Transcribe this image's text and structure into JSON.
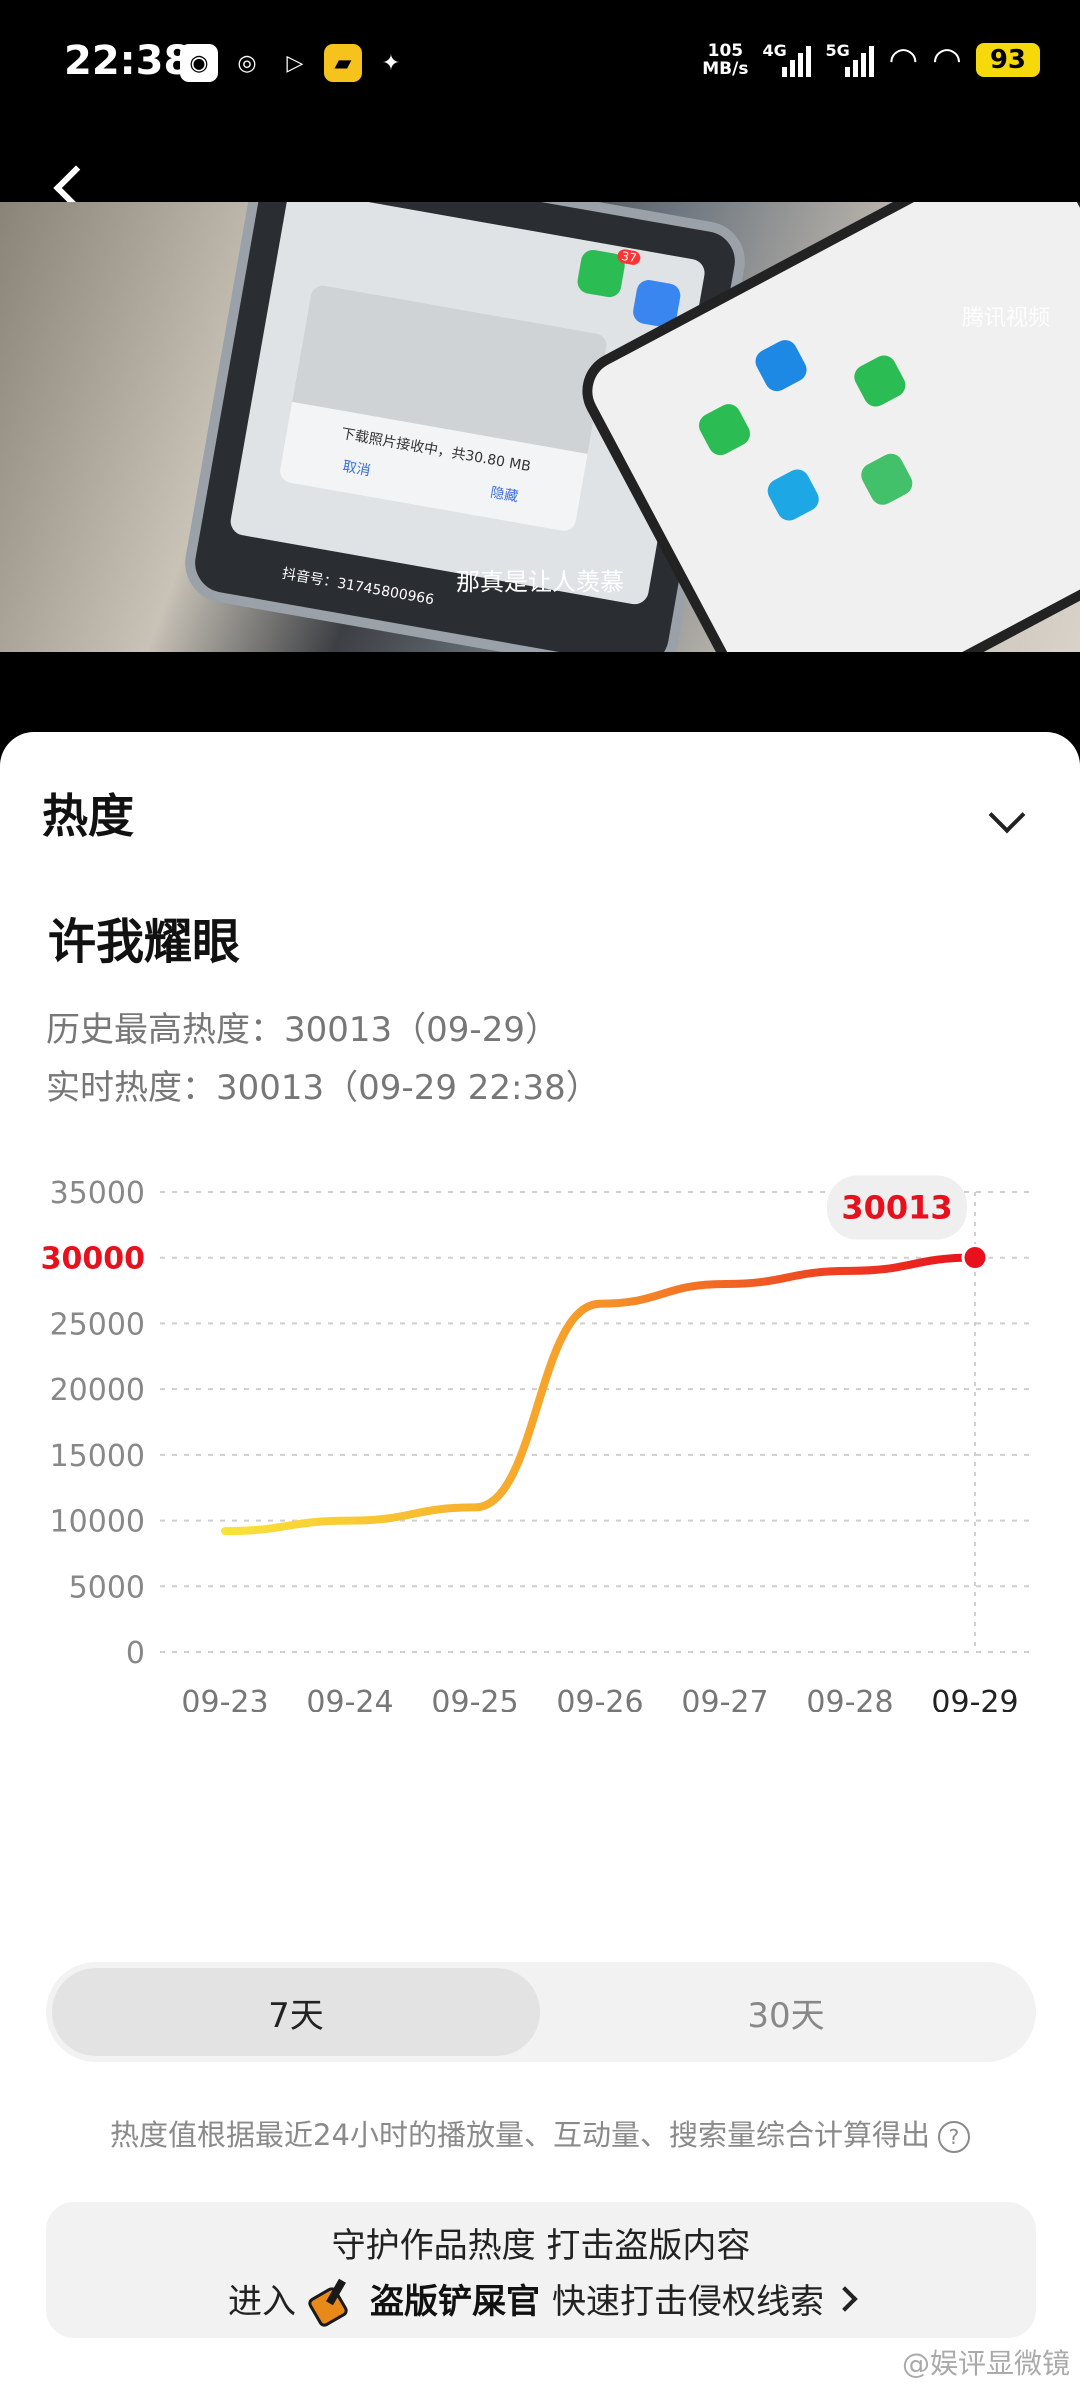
{
  "status_bar": {
    "time": "22:38",
    "net_speed_value": "105",
    "net_speed_unit": "MB/s",
    "net1": "4G",
    "net2": "5G",
    "battery": "93",
    "app_icons": [
      "gallery-icon",
      "weibo-icon",
      "video-play-icon",
      "folder-icon",
      "gift-icon"
    ]
  },
  "video": {
    "subtitle": "那真是让人羡慕",
    "watermark": "腾讯视频",
    "dialog_text": "下载照片接收中，共30.80 MB",
    "dialog_cancel": "取消",
    "dialog_hide": "隐藏",
    "douyin_id": "抖音号：31745800966",
    "badge1": "37"
  },
  "panel": {
    "title": "热度",
    "work_title": "许我耀眼",
    "history_max": "历史最高热度：30013（09-29）",
    "realtime": "实时热度：30013（09-29 22:38）"
  },
  "chart_data": {
    "type": "line",
    "x": [
      "09-23",
      "09-24",
      "09-25",
      "09-26",
      "09-27",
      "09-28",
      "09-29"
    ],
    "values": [
      9200,
      10000,
      11000,
      26500,
      28000,
      29000,
      30013
    ],
    "ylim": [
      0,
      35000
    ],
    "yticks": [
      35000,
      30000,
      25000,
      20000,
      15000,
      10000,
      5000,
      0
    ],
    "highlight_ytick": 30000,
    "tooltip": "30013",
    "grid": true,
    "colors": {
      "start": "#f8e33a",
      "mid": "#f7a02a",
      "end": "#e8101c"
    }
  },
  "tabs": {
    "days7": "7天",
    "days30": "30天"
  },
  "note": "热度值根据最近24小时的播放量、互动量、搜索量综合计算得出",
  "banner": {
    "line1": "守护作品热度 打击盗版内容",
    "enter": "进入",
    "brand": "盗版铲屎官",
    "action": "快速打击侵权线索"
  },
  "weibo_watermark": "@娱评显微镜"
}
